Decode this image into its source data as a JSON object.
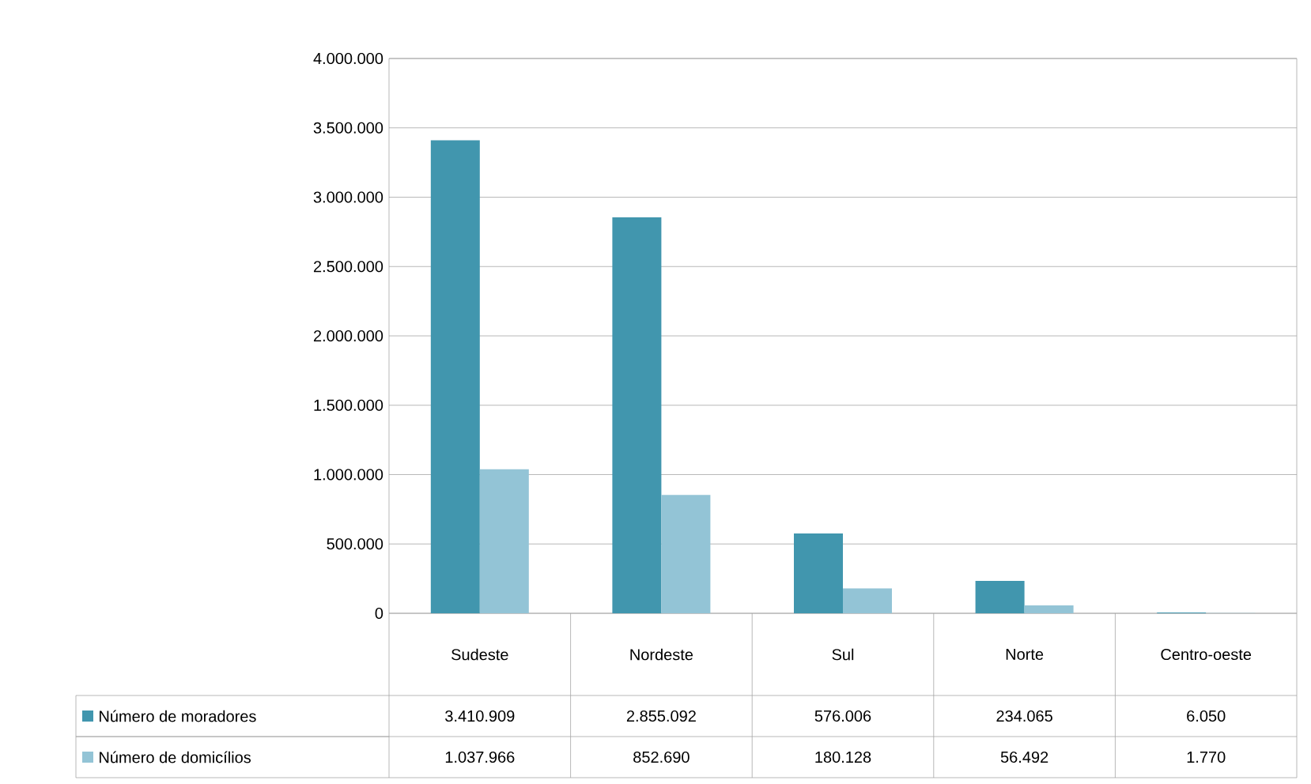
{
  "chart_data": {
    "type": "bar",
    "categories": [
      "Sudeste",
      "Nordeste",
      "Sul",
      "Norte",
      "Centro-oeste"
    ],
    "series": [
      {
        "name": "Número de moradores",
        "color": "#4196ae",
        "values": [
          3410909,
          2855092,
          576006,
          234065,
          6050
        ],
        "value_labels": [
          "3.410.909",
          "2.855.092",
          "576.006",
          "234.065",
          "6.050"
        ]
      },
      {
        "name": "Número de domicílios",
        "color": "#93c4d6",
        "values": [
          1037966,
          852690,
          180128,
          56492,
          1770
        ],
        "value_labels": [
          "1.037.966",
          "852.690",
          "180.128",
          "56.492",
          "1.770"
        ]
      }
    ],
    "ylim": [
      0,
      4000000
    ],
    "yticks": [
      0,
      {
        "value": 500000,
        "label": "500.000"
      },
      {
        "value": 1000000,
        "label": "1.000.000"
      },
      {
        "value": 1500000,
        "label": "1.500.000"
      },
      {
        "value": 2000000,
        "label": "2.000.000"
      },
      {
        "value": 2500000,
        "label": "2.500.000"
      },
      {
        "value": 3000000,
        "label": "3.000.000"
      },
      {
        "value": 3500000,
        "label": "3.500.000"
      },
      {
        "value": 4000000,
        "label": "4.000.000"
      }
    ],
    "grid": "y",
    "legend": "bottom"
  }
}
